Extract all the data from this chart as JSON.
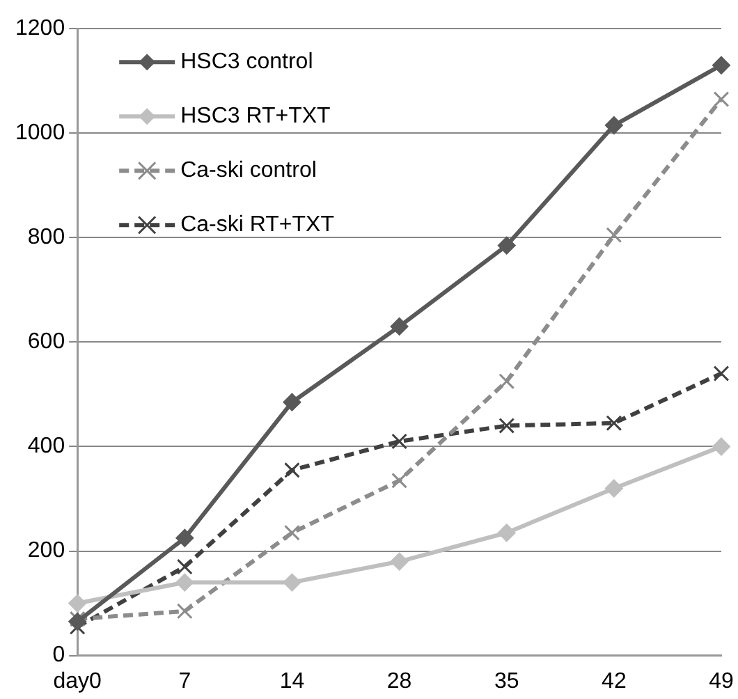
{
  "chart_data": {
    "type": "line",
    "categories": [
      "day0",
      "7",
      "14",
      "28",
      "35",
      "42",
      "49"
    ],
    "series": [
      {
        "name": "HSC3 control",
        "color": "#595959",
        "marker": "diamond",
        "line_style": "solid",
        "values": [
          65,
          225,
          485,
          630,
          785,
          1015,
          1130
        ]
      },
      {
        "name": "HSC3 RT+TXT",
        "color": "#bfbfbf",
        "marker": "diamond",
        "line_style": "solid",
        "values": [
          100,
          140,
          140,
          180,
          235,
          320,
          400
        ]
      },
      {
        "name": "Ca-ski control",
        "color": "#8c8c8c",
        "marker": "cross",
        "line_style": "dashed",
        "values": [
          70,
          85,
          235,
          335,
          525,
          805,
          1065
        ]
      },
      {
        "name": "Ca-ski RT+TXT",
        "color": "#404040",
        "marker": "cross",
        "line_style": "dashed",
        "values": [
          55,
          170,
          355,
          410,
          440,
          445,
          540
        ]
      }
    ],
    "ylim": [
      0,
      1200
    ],
    "yticks": [
      0,
      200,
      400,
      600,
      800,
      1000,
      1200
    ],
    "grid": "y",
    "legend": "top left"
  }
}
